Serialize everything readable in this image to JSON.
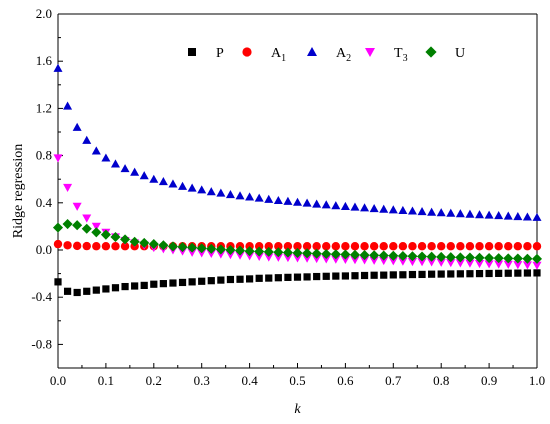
{
  "chart_data": {
    "type": "scatter",
    "xlabel": "k",
    "ylabel": "Ridge regression",
    "xlim": [
      0.0,
      1.0
    ],
    "ylim": [
      -1.0,
      2.0
    ],
    "xticks": [
      "0.0",
      "0.1",
      "0.2",
      "0.3",
      "0.4",
      "0.5",
      "0.6",
      "0.7",
      "0.8",
      "0.9",
      "1.0"
    ],
    "yticks": [
      "-0.8",
      "-0.4",
      "0.0",
      "0.4",
      "0.8",
      "1.2",
      "1.6",
      "2.0"
    ],
    "grid": false,
    "legend_position": "top",
    "x": [
      0.0,
      0.02,
      0.04,
      0.06,
      0.08,
      0.1,
      0.12,
      0.14,
      0.16,
      0.18,
      0.2,
      0.22,
      0.24,
      0.26,
      0.28,
      0.3,
      0.32,
      0.34,
      0.36,
      0.38,
      0.4,
      0.42,
      0.44,
      0.46,
      0.48,
      0.5,
      0.52,
      0.54,
      0.56,
      0.58,
      0.6,
      0.62,
      0.64,
      0.66,
      0.68,
      0.7,
      0.72,
      0.74,
      0.76,
      0.78,
      0.8,
      0.82,
      0.84,
      0.86,
      0.88,
      0.9,
      0.92,
      0.94,
      0.96,
      0.98,
      1.0
    ],
    "series": [
      {
        "name": "P",
        "sub": "",
        "marker": "square",
        "color": "#000000",
        "values": [
          -0.27,
          -0.35,
          -0.36,
          -0.35,
          -0.34,
          -0.33,
          -0.32,
          -0.31,
          -0.305,
          -0.3,
          -0.29,
          -0.285,
          -0.28,
          -0.275,
          -0.27,
          -0.265,
          -0.26,
          -0.255,
          -0.25,
          -0.248,
          -0.245,
          -0.24,
          -0.238,
          -0.235,
          -0.232,
          -0.23,
          -0.228,
          -0.225,
          -0.223,
          -0.221,
          -0.22,
          -0.218,
          -0.216,
          -0.214,
          -0.213,
          -0.211,
          -0.21,
          -0.208,
          -0.207,
          -0.205,
          -0.204,
          -0.203,
          -0.202,
          -0.201,
          -0.2,
          -0.199,
          -0.198,
          -0.197,
          -0.196,
          -0.195,
          -0.194
        ]
      },
      {
        "name": "A",
        "sub": "1",
        "marker": "circle",
        "color": "#ff0000",
        "values": [
          0.05,
          0.04,
          0.035,
          0.033,
          0.032,
          0.032,
          0.032,
          0.032,
          0.032,
          0.032,
          0.032,
          0.032,
          0.032,
          0.032,
          0.032,
          0.032,
          0.032,
          0.032,
          0.032,
          0.032,
          0.032,
          0.032,
          0.032,
          0.032,
          0.032,
          0.032,
          0.032,
          0.032,
          0.032,
          0.032,
          0.032,
          0.032,
          0.032,
          0.032,
          0.032,
          0.032,
          0.032,
          0.032,
          0.032,
          0.032,
          0.032,
          0.032,
          0.032,
          0.032,
          0.032,
          0.032,
          0.032,
          0.032,
          0.032,
          0.032,
          0.032
        ]
      },
      {
        "name": "A",
        "sub": "2",
        "marker": "triangle-up",
        "color": "#0000cc",
        "values": [
          1.54,
          1.22,
          1.04,
          0.93,
          0.84,
          0.78,
          0.73,
          0.69,
          0.66,
          0.63,
          0.6,
          0.58,
          0.56,
          0.54,
          0.525,
          0.51,
          0.495,
          0.483,
          0.47,
          0.46,
          0.45,
          0.44,
          0.43,
          0.42,
          0.413,
          0.405,
          0.398,
          0.39,
          0.383,
          0.376,
          0.37,
          0.364,
          0.358,
          0.352,
          0.346,
          0.341,
          0.336,
          0.331,
          0.326,
          0.321,
          0.317,
          0.312,
          0.308,
          0.304,
          0.3,
          0.296,
          0.292,
          0.288,
          0.284,
          0.28,
          0.277
        ]
      },
      {
        "name": "T",
        "sub": "3",
        "marker": "triangle-down",
        "color": "#ff00ff",
        "values": [
          0.78,
          0.53,
          0.37,
          0.27,
          0.2,
          0.15,
          0.11,
          0.08,
          0.06,
          0.04,
          0.02,
          0.01,
          0.0,
          -0.01,
          -0.02,
          -0.025,
          -0.03,
          -0.035,
          -0.04,
          -0.045,
          -0.05,
          -0.055,
          -0.06,
          -0.062,
          -0.065,
          -0.068,
          -0.07,
          -0.073,
          -0.076,
          -0.078,
          -0.08,
          -0.083,
          -0.085,
          -0.088,
          -0.09,
          -0.092,
          -0.095,
          -0.098,
          -0.1,
          -0.102,
          -0.105,
          -0.108,
          -0.11,
          -0.112,
          -0.115,
          -0.118,
          -0.12,
          -0.122,
          -0.125,
          -0.127,
          -0.13
        ]
      },
      {
        "name": "U",
        "sub": "",
        "marker": "diamond",
        "color": "#008000",
        "values": [
          0.19,
          0.22,
          0.21,
          0.18,
          0.15,
          0.13,
          0.11,
          0.09,
          0.07,
          0.06,
          0.05,
          0.04,
          0.03,
          0.025,
          0.02,
          0.015,
          0.01,
          0.005,
          0.0,
          -0.005,
          -0.01,
          -0.013,
          -0.016,
          -0.019,
          -0.022,
          -0.025,
          -0.028,
          -0.031,
          -0.034,
          -0.036,
          -0.038,
          -0.041,
          -0.043,
          -0.045,
          -0.047,
          -0.049,
          -0.051,
          -0.053,
          -0.055,
          -0.057,
          -0.059,
          -0.061,
          -0.063,
          -0.064,
          -0.066,
          -0.068,
          -0.069,
          -0.071,
          -0.072,
          -0.074,
          -0.075
        ]
      }
    ]
  }
}
